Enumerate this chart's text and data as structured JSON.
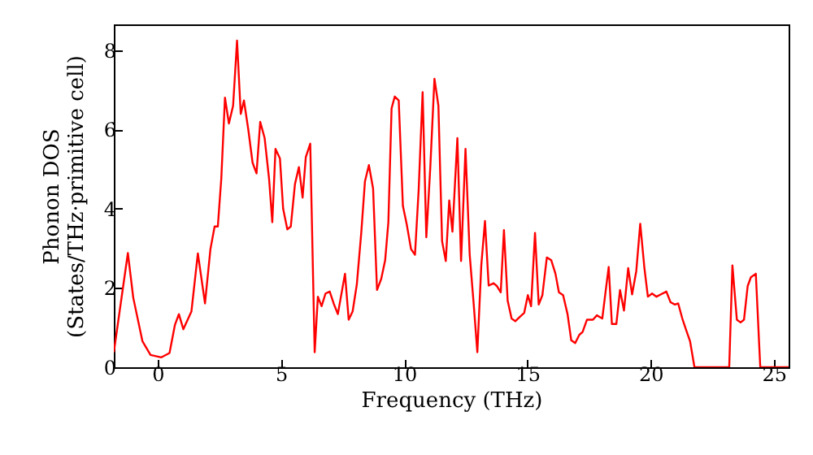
{
  "chart_data": {
    "type": "line",
    "xlabel": "Frequency (THz)",
    "ylabel": "Phonon DOS\n(States/THz·primitive cell)",
    "x": [
      -1.78,
      -1.21,
      -0.99,
      -0.62,
      -0.29,
      0.15,
      0.48,
      0.7,
      0.86,
      1.04,
      1.37,
      1.63,
      1.92,
      2.14,
      2.31,
      2.44,
      2.58,
      2.73,
      2.89,
      3.06,
      3.22,
      3.37,
      3.5,
      3.68,
      3.85,
      4.01,
      4.16,
      4.34,
      4.52,
      4.65,
      4.78,
      4.96,
      5.09,
      5.26,
      5.4,
      5.57,
      5.73,
      5.88,
      6.01,
      6.19,
      6.37,
      6.5,
      6.65,
      6.81,
      6.98,
      7.14,
      7.31,
      7.6,
      7.75,
      7.91,
      8.08,
      8.26,
      8.41,
      8.57,
      8.74,
      8.9,
      9.07,
      9.23,
      9.36,
      9.49,
      9.62,
      9.78,
      9.95,
      10.11,
      10.28,
      10.44,
      10.59,
      10.75,
      10.9,
      11.06,
      11.23,
      11.39,
      11.54,
      11.69,
      11.83,
      11.96,
      12.16,
      12.31,
      12.49,
      12.66,
      12.82,
      12.97,
      13.13,
      13.28,
      13.43,
      13.63,
      13.76,
      13.92,
      14.05,
      14.2,
      14.36,
      14.51,
      14.69,
      14.87,
      15.02,
      15.15,
      15.31,
      15.46,
      15.61,
      15.79,
      15.97,
      16.14,
      16.28,
      16.45,
      16.63,
      16.78,
      16.94,
      17.11,
      17.24,
      17.42,
      17.66,
      17.82,
      18.04,
      18.17,
      18.3,
      18.43,
      18.61,
      18.76,
      18.92,
      19.09,
      19.25,
      19.42,
      19.58,
      19.75,
      19.89,
      20.06,
      20.24,
      20.42,
      20.64,
      20.81,
      20.99,
      21.12,
      21.3,
      21.47,
      21.6,
      21.78,
      23.19,
      23.32,
      23.5,
      23.65,
      23.79,
      23.94,
      24.07,
      24.27,
      24.45,
      25.6
    ],
    "series": [
      {
        "color": "#ff0000",
        "values": [
          0.38,
          2.88,
          1.75,
          0.66,
          0.31,
          0.25,
          0.36,
          1.07,
          1.34,
          0.96,
          1.41,
          2.87,
          1.61,
          2.98,
          3.55,
          3.55,
          4.75,
          6.8,
          6.15,
          6.6,
          8.24,
          6.39,
          6.73,
          5.98,
          5.16,
          4.89,
          6.19,
          5.78,
          4.75,
          3.66,
          5.51,
          5.27,
          4.0,
          3.48,
          3.55,
          4.62,
          5.05,
          4.28,
          5.3,
          5.64,
          0.38,
          1.78,
          1.54,
          1.86,
          1.91,
          1.61,
          1.34,
          2.36,
          1.2,
          1.41,
          2.09,
          3.39,
          4.69,
          5.1,
          4.51,
          1.95,
          2.23,
          2.7,
          3.66,
          6.53,
          6.83,
          6.73,
          4.07,
          3.59,
          2.98,
          2.84,
          4.48,
          6.94,
          3.28,
          5.03,
          7.28,
          6.6,
          3.18,
          2.68,
          4.21,
          3.42,
          5.78,
          2.68,
          5.51,
          2.84,
          1.61,
          0.38,
          2.57,
          3.69,
          2.06,
          2.12,
          2.05,
          1.89,
          3.46,
          1.68,
          1.23,
          1.16,
          1.27,
          1.37,
          1.82,
          1.54,
          3.39,
          1.58,
          1.82,
          2.77,
          2.7,
          2.36,
          1.89,
          1.82,
          1.34,
          0.68,
          0.61,
          0.82,
          0.89,
          1.2,
          1.2,
          1.31,
          1.23,
          1.89,
          2.53,
          1.09,
          1.09,
          1.95,
          1.43,
          2.5,
          1.84,
          2.43,
          3.62,
          2.5,
          1.78,
          1.86,
          1.78,
          1.84,
          1.91,
          1.64,
          1.58,
          1.61,
          1.2,
          0.89,
          0.66,
          0,
          0,
          2.57,
          1.2,
          1.13,
          1.2,
          2.05,
          2.27,
          2.36,
          0,
          0
        ]
      }
    ],
    "xlim": [
      -1.78,
      25.6
    ],
    "xticks": [
      0,
      5,
      10,
      15,
      20,
      25
    ],
    "ylim": [
      0,
      8.65
    ],
    "yticks": [
      0,
      2,
      4,
      6,
      8
    ]
  }
}
